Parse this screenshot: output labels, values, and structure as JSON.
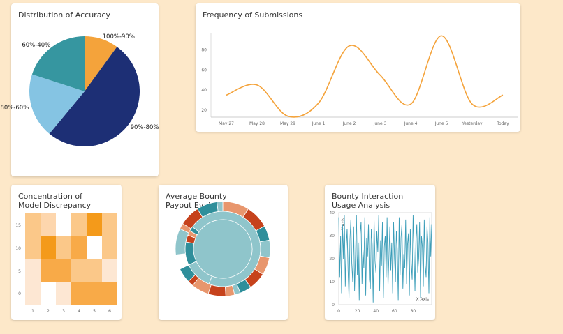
{
  "charts": {
    "pie": {
      "title": "Distribution of Accuracy"
    },
    "line": {
      "title": "Frequency of Submissions"
    },
    "heatmap": {
      "title": "Concentration of\nModel Discrepancy"
    },
    "sunburst": {
      "title": "Average Bounty\nPayout Evaluation"
    },
    "noise": {
      "title": "Bounty Interaction\nUsage Analysis"
    }
  },
  "colors": {
    "orange": "#f4a33b",
    "navy": "#1d2f75",
    "skyblue": "#85c4e3",
    "teal": "#3696a0",
    "sun_inner": "#8fc5cb",
    "sun_teal": "#2f8f9b",
    "sun_rust": "#c6421c",
    "sun_salmon": "#e8966d",
    "noise_line": "#3a9db8"
  },
  "chart_data": [
    {
      "type": "pie",
      "title": "Distribution of Accuracy",
      "labels": [
        "100%-90%",
        "90%-80%",
        "80%-60%",
        "60%-40%"
      ],
      "values": [
        10,
        51,
        19,
        20
      ]
    },
    {
      "type": "line",
      "title": "Frequency of Submissions",
      "categories": [
        "May 27",
        "May 28",
        "May 29",
        "June 1",
        "June 2",
        "June 3",
        "June 4",
        "June 5",
        "Yesterday",
        "Today"
      ],
      "values": [
        35,
        45,
        14,
        27,
        84,
        55,
        26,
        94,
        26,
        35
      ],
      "yticks": [
        20,
        40,
        60,
        80
      ],
      "ylim": [
        13,
        97
      ]
    },
    {
      "type": "heatmap",
      "title": "Concentration of Model Discrepancy",
      "xticks": [
        "1",
        "2",
        "3",
        "4",
        "5",
        "6"
      ],
      "yticks": [
        "0",
        "5",
        "10",
        "15"
      ],
      "rows": [
        [
          3,
          2,
          0,
          3,
          5,
          3
        ],
        [
          3,
          5,
          3,
          4,
          0,
          3
        ],
        [
          1,
          4,
          4,
          3,
          3,
          1
        ],
        [
          1,
          0,
          1,
          4,
          4,
          4
        ]
      ]
    },
    {
      "type": "sunburst",
      "title": "Average Bounty Payout Evaluation",
      "inner": [
        {
          "name": "center",
          "value": 100
        }
      ],
      "middle": [
        {
          "color": "sun_inner",
          "value": 12
        },
        {
          "color": "sun_teal",
          "value": 10
        },
        {
          "color": "sun_rust",
          "value": 3
        },
        {
          "color": "sun_salmon",
          "value": 2
        },
        {
          "color": "sun_teal",
          "value": 2
        },
        {
          "color": "sun_inner",
          "value": 71
        }
      ],
      "outer": [
        {
          "color": "sun_salmon",
          "value": 9
        },
        {
          "color": "sun_rust",
          "value": 8
        },
        {
          "color": "sun_teal",
          "value": 5
        },
        {
          "color": "sun_inner",
          "value": 6
        },
        {
          "color": "sun_salmon",
          "value": 6
        },
        {
          "color": "sun_rust",
          "value": 6
        },
        {
          "color": "sun_teal",
          "value": 4
        },
        {
          "color": "sun_inner",
          "value": 2
        },
        {
          "color": "sun_salmon",
          "value": 3
        },
        {
          "color": "sun_rust",
          "value": 6
        },
        {
          "color": "sun_salmon",
          "value": 6
        },
        {
          "color": "sun_rust",
          "value": 2
        },
        {
          "color": "sun_teal",
          "value": 5
        },
        {
          "color": "none",
          "value": 5
        },
        {
          "color": "sun_inner",
          "value": 9
        },
        {
          "color": "sun_salmon",
          "value": 2
        },
        {
          "color": "sun_rust",
          "value": 7
        },
        {
          "color": "sun_teal",
          "value": 7
        },
        {
          "color": "sun_inner",
          "value": 2
        }
      ]
    },
    {
      "type": "line",
      "title": "Bounty Interaction Usage Analysis",
      "xticks": [
        0,
        20,
        40,
        60,
        80
      ],
      "yticks": [
        0,
        10,
        20,
        30,
        40
      ],
      "xlim": [
        0,
        100
      ],
      "ylim": [
        0,
        40
      ],
      "xlabel": "X Axis",
      "ylabel": "Y Axis",
      "values": [
        38,
        12,
        30,
        5,
        35,
        20,
        39,
        8,
        25,
        33,
        15,
        3,
        28,
        37,
        18,
        10,
        34,
        6,
        22,
        39,
        13,
        27,
        2,
        31,
        36,
        9,
        24,
        16,
        38,
        4,
        29,
        21,
        35,
        11,
        7,
        33,
        26,
        1,
        37,
        19,
        14,
        32,
        23,
        39,
        6,
        28,
        17,
        36,
        3,
        25,
        30,
        12,
        38,
        8,
        21,
        34,
        15,
        27,
        5,
        36,
        20,
        10,
        32,
        24,
        2,
        38,
        13,
        29,
        35,
        7,
        22,
        16,
        37,
        9,
        26,
        31,
        4,
        33,
        18,
        11,
        39,
        23,
        6,
        28,
        35,
        14,
        20,
        36,
        3,
        30,
        25,
        8,
        37,
        17,
        12,
        34,
        27,
        5,
        38,
        21,
        35
      ],
      "series_color": "noise_line"
    }
  ]
}
